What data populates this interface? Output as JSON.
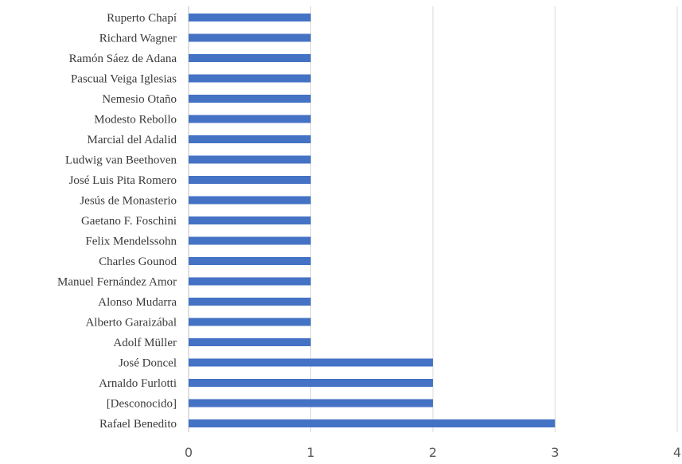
{
  "chart_data": {
    "type": "bar",
    "orientation": "horizontal",
    "categories": [
      "Ruperto Chapí",
      "Richard Wagner",
      "Ramón Sáez de Adana",
      "Pascual Veiga Iglesias",
      "Nemesio Otaño",
      "Modesto Rebollo",
      "Marcial del Adalid",
      "Ludwig van Beethoven",
      "José Luis Pita Romero",
      "Jesús de Monasterio",
      "Gaetano F. Foschini",
      "Felix Mendelssohn",
      "Charles Gounod",
      "Manuel Fernández Amor",
      "Alonso Mudarra",
      "Alberto Garaizábal",
      "Adolf Müller",
      "José Doncel",
      "Arnaldo Furlotti",
      "[Desconocido]",
      "Rafael Benedito"
    ],
    "values": [
      1,
      1,
      1,
      1,
      1,
      1,
      1,
      1,
      1,
      1,
      1,
      1,
      1,
      1,
      1,
      1,
      1,
      2,
      2,
      2,
      3
    ],
    "xlim": [
      0,
      4
    ],
    "xticks": [
      "0",
      "1",
      "2",
      "3",
      "4"
    ],
    "grid": true,
    "bar_color": "#4472c4",
    "title": "",
    "xlabel": "",
    "ylabel": ""
  }
}
